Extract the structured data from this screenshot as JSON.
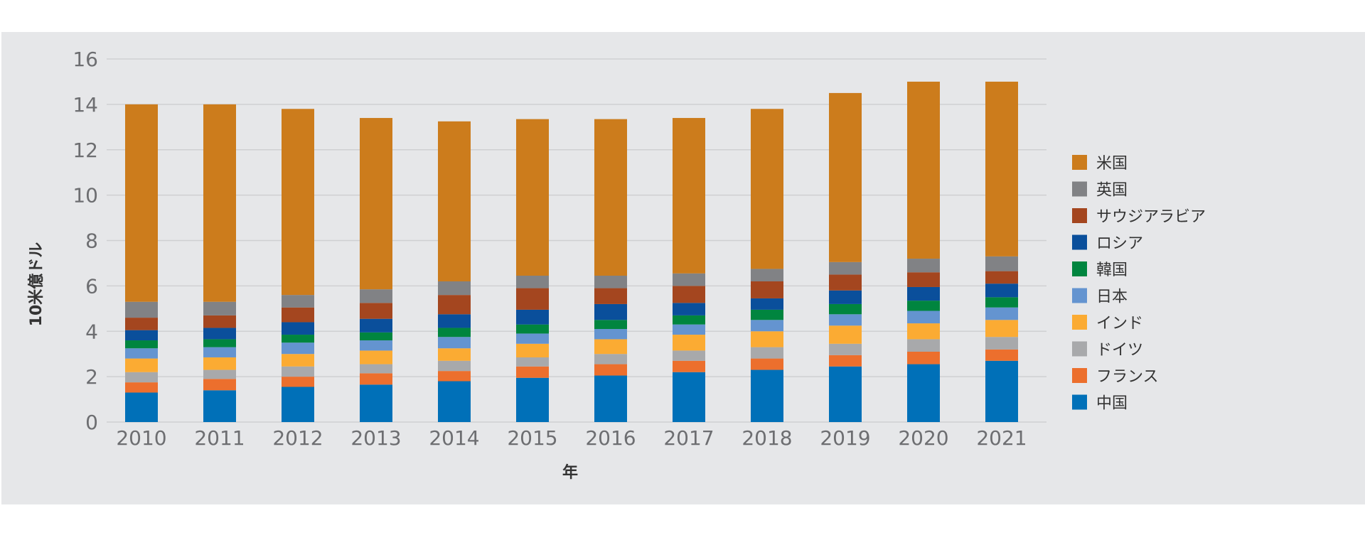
{
  "chart_data": {
    "type": "bar",
    "stacked": true,
    "title": "",
    "xlabel": "年",
    "ylabel": "10米億ドル",
    "ylim": [
      0,
      16
    ],
    "yticks": [
      0,
      2,
      4,
      6,
      8,
      10,
      12,
      14,
      16
    ],
    "grid": true,
    "legend_position": "right",
    "categories": [
      "2010",
      "2011",
      "2012",
      "2013",
      "2014",
      "2015",
      "2016",
      "2017",
      "2018",
      "2019",
      "2020",
      "2021"
    ],
    "series": [
      {
        "name": "中国",
        "color": "#0070b8",
        "values": [
          1.3,
          1.4,
          1.55,
          1.65,
          1.8,
          1.95,
          2.05,
          2.2,
          2.3,
          2.45,
          2.55,
          2.7
        ]
      },
      {
        "name": "フランス",
        "color": "#ec6f2d",
        "values": [
          0.45,
          0.5,
          0.45,
          0.5,
          0.45,
          0.5,
          0.5,
          0.5,
          0.5,
          0.5,
          0.55,
          0.5
        ]
      },
      {
        "name": "ドイツ",
        "color": "#a8a9ab",
        "values": [
          0.45,
          0.4,
          0.45,
          0.4,
          0.45,
          0.4,
          0.45,
          0.45,
          0.5,
          0.5,
          0.55,
          0.55
        ]
      },
      {
        "name": "インド",
        "color": "#fbab33",
        "values": [
          0.6,
          0.55,
          0.55,
          0.6,
          0.55,
          0.6,
          0.65,
          0.7,
          0.7,
          0.8,
          0.7,
          0.75
        ]
      },
      {
        "name": "日本",
        "color": "#6494d0",
        "values": [
          0.45,
          0.45,
          0.5,
          0.45,
          0.5,
          0.45,
          0.45,
          0.45,
          0.5,
          0.5,
          0.55,
          0.55
        ]
      },
      {
        "name": "韓国",
        "color": "#00853f",
        "values": [
          0.35,
          0.35,
          0.35,
          0.35,
          0.4,
          0.4,
          0.4,
          0.4,
          0.45,
          0.45,
          0.45,
          0.45
        ]
      },
      {
        "name": "ロシア",
        "color": "#0a4f9b",
        "values": [
          0.45,
          0.5,
          0.55,
          0.6,
          0.6,
          0.65,
          0.7,
          0.55,
          0.5,
          0.6,
          0.6,
          0.6
        ]
      },
      {
        "name": "サウジアラビア",
        "color": "#a4461f",
        "values": [
          0.55,
          0.55,
          0.65,
          0.7,
          0.85,
          0.95,
          0.7,
          0.75,
          0.75,
          0.7,
          0.65,
          0.55
        ]
      },
      {
        "name": "英国",
        "color": "#818285",
        "values": [
          0.7,
          0.6,
          0.55,
          0.6,
          0.6,
          0.55,
          0.55,
          0.55,
          0.55,
          0.55,
          0.6,
          0.65
        ]
      },
      {
        "name": "米国",
        "color": "#cc7c1c",
        "values": [
          8.7,
          8.7,
          8.2,
          7.55,
          7.05,
          6.9,
          6.9,
          6.85,
          7.05,
          7.45,
          7.8,
          7.7
        ]
      }
    ]
  }
}
